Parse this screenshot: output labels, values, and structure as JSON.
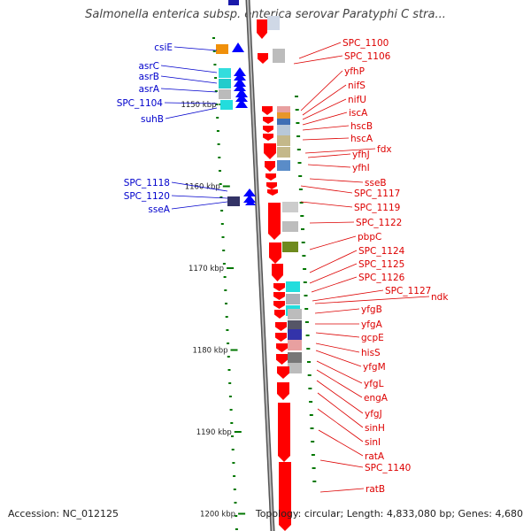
{
  "title": "Salmonella enterica subsp. enterica serovar Paratyphi C stra...",
  "accession_label": "Accession: NC_012125",
  "summary_label": "Topology: circular; Length: 4,833,080 bp; Genes: 4,680",
  "scale": {
    "unit": "kbp",
    "ticks": [
      {
        "label": "1150 kbp",
        "kbp": 1150
      },
      {
        "label": "1160 kbp",
        "kbp": 1160
      },
      {
        "label": "1170 kbp",
        "kbp": 1170
      },
      {
        "label": "1180 kbp",
        "kbp": 1180
      },
      {
        "label": "1190 kbp",
        "kbp": 1190
      },
      {
        "label": "1200 kbp",
        "kbp": 1200
      }
    ]
  },
  "colors": {
    "left_strand_label": "#0000cc",
    "right_strand_label": "#dd0000",
    "forward_arrow": "#0000ff",
    "reverse_arrow": "#ff0000",
    "backbone": "#888888",
    "tick": "#007700"
  },
  "left_labels": [
    "csiE",
    "asrC",
    "asrB",
    "asrA",
    "SPC_1104",
    "suhB",
    "SPC_1118",
    "SPC_1120",
    "sseA"
  ],
  "right_labels": [
    "SPC_1100",
    "SPC_1106",
    "yfhP",
    "nifS",
    "nifU",
    "iscA",
    "hscB",
    "hscA",
    "fdx",
    "yfhJ",
    "yfhI",
    "sseB",
    "SPC_1117",
    "SPC_1119",
    "SPC_1122",
    "pbpC",
    "SPC_1124",
    "SPC_1125",
    "SPC_1126",
    "SPC_1127",
    "ndk",
    "yfgB",
    "yfgA",
    "gcpE",
    "hisS",
    "yfgM",
    "yfgL",
    "engA",
    "yfgJ",
    "sinH",
    "sinI",
    "ratA",
    "SPC_1140",
    "ratB"
  ]
}
